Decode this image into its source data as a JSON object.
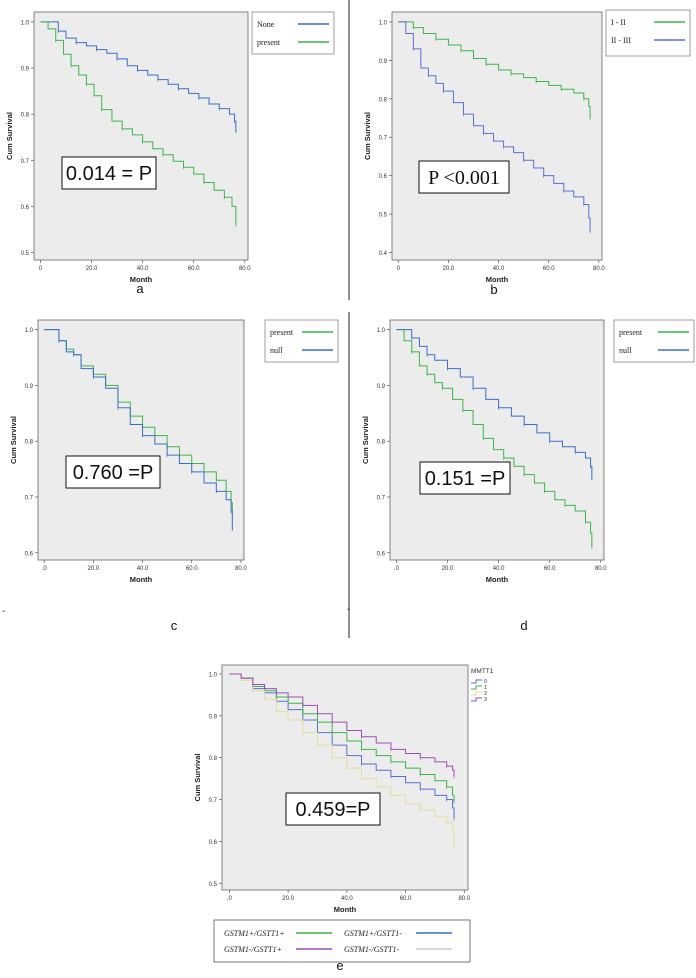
{
  "figure": {
    "divider_colors": {
      "line": "#222222"
    },
    "marker_c": "-",
    "marker_d": "-"
  },
  "chart_data": [
    {
      "panel_label": "a",
      "type": "line",
      "xlabel": "Month",
      "ylabel": "Cum Survival",
      "xlim": [
        0,
        80
      ],
      "ylim": [
        0.5,
        1.0
      ],
      "xticks": [
        0,
        20,
        40,
        60,
        80
      ],
      "xtick_labels": [
        "0",
        "20.0",
        "40.0",
        "60.0",
        "80.0"
      ],
      "yticks": [
        0.5,
        0.6,
        0.7,
        0.8,
        0.9,
        1.0
      ],
      "ytick_labels": [
        "0.5",
        "0.6",
        "0.7",
        "0.8",
        "0.9",
        "1.0"
      ],
      "annotation": "0.014 = P",
      "annotation_font": "sans",
      "legend_position": "top-right",
      "series": [
        {
          "name": "None",
          "color": "#3a6fc9",
          "x": [
            0,
            3,
            7,
            10,
            14,
            18,
            22,
            26,
            30,
            34,
            38,
            42,
            46,
            50,
            54,
            58,
            62,
            66,
            70,
            74,
            76,
            76.5
          ],
          "y": [
            1.0,
            1.0,
            0.98,
            0.965,
            0.955,
            0.948,
            0.94,
            0.932,
            0.92,
            0.905,
            0.895,
            0.885,
            0.875,
            0.865,
            0.855,
            0.845,
            0.835,
            0.822,
            0.812,
            0.8,
            0.785,
            0.76
          ]
        },
        {
          "name": "present",
          "color": "#3cb54a",
          "x": [
            0,
            3,
            6,
            9,
            12,
            15,
            18,
            21,
            24,
            28,
            32,
            36,
            40,
            44,
            48,
            52,
            56,
            60,
            64,
            68,
            72,
            75,
            76.5
          ],
          "y": [
            1.0,
            0.985,
            0.96,
            0.93,
            0.905,
            0.885,
            0.865,
            0.84,
            0.81,
            0.785,
            0.768,
            0.755,
            0.74,
            0.725,
            0.712,
            0.698,
            0.685,
            0.67,
            0.652,
            0.635,
            0.62,
            0.6,
            0.56
          ]
        }
      ]
    },
    {
      "panel_label": "b",
      "type": "line",
      "xlabel": "Month",
      "ylabel": "Cum Survival",
      "xlim": [
        0,
        80
      ],
      "ylim": [
        0.4,
        1.0
      ],
      "xticks": [
        0,
        20,
        40,
        60,
        80
      ],
      "xtick_labels": [
        "0",
        "20.0",
        "40.0",
        "60.0",
        "80.0"
      ],
      "yticks": [
        0.4,
        0.5,
        0.6,
        0.7,
        0.8,
        0.9,
        1.0
      ],
      "ytick_labels": [
        "0.4",
        "0.5",
        "0.6",
        "0.7",
        "0.8",
        "0.9",
        "1.0"
      ],
      "annotation": "P <0.001",
      "annotation_font": "serif",
      "legend_position": "top-right",
      "series": [
        {
          "name": "I - II",
          "color": "#3cb54a",
          "x": [
            0,
            3,
            6,
            10,
            15,
            20,
            25,
            30,
            35,
            40,
            45,
            50,
            55,
            60,
            65,
            70,
            74,
            76,
            76.5
          ],
          "y": [
            1.0,
            1.0,
            0.985,
            0.97,
            0.955,
            0.94,
            0.925,
            0.905,
            0.89,
            0.875,
            0.865,
            0.855,
            0.845,
            0.835,
            0.825,
            0.815,
            0.8,
            0.78,
            0.75
          ]
        },
        {
          "name": "II - III",
          "color": "#5b6fd6",
          "x": [
            0,
            3,
            6,
            9,
            12,
            15,
            18,
            22,
            26,
            30,
            34,
            38,
            42,
            46,
            50,
            54,
            58,
            62,
            66,
            70,
            74,
            76,
            76.5
          ],
          "y": [
            1.0,
            0.97,
            0.93,
            0.88,
            0.86,
            0.84,
            0.82,
            0.79,
            0.76,
            0.73,
            0.71,
            0.69,
            0.675,
            0.66,
            0.64,
            0.62,
            0.6,
            0.58,
            0.56,
            0.545,
            0.525,
            0.49,
            0.455
          ]
        }
      ]
    },
    {
      "panel_label": "c",
      "type": "line",
      "xlabel": "Month",
      "ylabel": "Cum Survival",
      "xlim": [
        0,
        80
      ],
      "ylim": [
        0.6,
        1.0
      ],
      "xticks": [
        0,
        20,
        40,
        60,
        80
      ],
      "xtick_labels": [
        ".0",
        "20.0",
        "40.0",
        "60.0",
        "80.0"
      ],
      "yticks": [
        0.6,
        0.7,
        0.8,
        0.9,
        1.0
      ],
      "ytick_labels": [
        "0.6",
        "0.7",
        "0.8",
        "0.9",
        "1.0"
      ],
      "annotation": "0.760 =P",
      "annotation_font": "sans",
      "legend_position": "top-right",
      "series": [
        {
          "name": "present",
          "color": "#3cb54a",
          "x": [
            0,
            3,
            6,
            9,
            12,
            15,
            20,
            25,
            30,
            35,
            40,
            45,
            50,
            55,
            60,
            65,
            70,
            74,
            76,
            76.5
          ],
          "y": [
            1.0,
            1.0,
            0.98,
            0.965,
            0.955,
            0.935,
            0.92,
            0.9,
            0.87,
            0.845,
            0.825,
            0.81,
            0.79,
            0.775,
            0.76,
            0.745,
            0.73,
            0.71,
            0.69,
            0.665
          ]
        },
        {
          "name": "null",
          "color": "#3a6fc9",
          "x": [
            0,
            3,
            6,
            9,
            12,
            15,
            20,
            25,
            30,
            35,
            40,
            45,
            50,
            55,
            60,
            65,
            70,
            74,
            76,
            76.5
          ],
          "y": [
            1.0,
            1.0,
            0.98,
            0.96,
            0.955,
            0.93,
            0.915,
            0.895,
            0.86,
            0.83,
            0.81,
            0.795,
            0.775,
            0.76,
            0.745,
            0.725,
            0.71,
            0.695,
            0.675,
            0.64
          ]
        }
      ]
    },
    {
      "panel_label": "d",
      "type": "line",
      "xlabel": "Month",
      "ylabel": "Cum Survival",
      "xlim": [
        0,
        80
      ],
      "ylim": [
        0.6,
        1.0
      ],
      "xticks": [
        0,
        20,
        40,
        60,
        80
      ],
      "xtick_labels": [
        ".0",
        "20.0",
        "40.0",
        "60.0",
        "80.0"
      ],
      "yticks": [
        0.6,
        0.7,
        0.8,
        0.9,
        1.0
      ],
      "ytick_labels": [
        "0.6",
        "0.7",
        "0.8",
        "0.9",
        "1.0"
      ],
      "annotation": "0.151 =P",
      "annotation_font": "sans",
      "legend_position": "top-right",
      "series": [
        {
          "name": "present",
          "color": "#3cb54a",
          "x": [
            0,
            3,
            6,
            9,
            12,
            15,
            18,
            22,
            26,
            30,
            34,
            38,
            42,
            46,
            50,
            54,
            58,
            62,
            66,
            70,
            74,
            76,
            76.5
          ],
          "y": [
            1.0,
            0.98,
            0.96,
            0.935,
            0.92,
            0.905,
            0.895,
            0.875,
            0.855,
            0.83,
            0.805,
            0.785,
            0.77,
            0.755,
            0.74,
            0.725,
            0.71,
            0.695,
            0.685,
            0.675,
            0.655,
            0.635,
            0.61
          ]
        },
        {
          "name": "null",
          "color": "#3a6fc9",
          "x": [
            0,
            3,
            6,
            9,
            12,
            15,
            20,
            25,
            30,
            35,
            40,
            45,
            50,
            55,
            60,
            65,
            70,
            74,
            76,
            76.5
          ],
          "y": [
            1.0,
            1.0,
            0.985,
            0.97,
            0.955,
            0.945,
            0.93,
            0.915,
            0.895,
            0.875,
            0.86,
            0.845,
            0.83,
            0.815,
            0.8,
            0.79,
            0.78,
            0.77,
            0.755,
            0.73
          ]
        }
      ]
    },
    {
      "panel_label": "e",
      "type": "line",
      "xlabel": "Month",
      "ylabel": "Cum Survival",
      "xlim": [
        0,
        80
      ],
      "ylim": [
        0.5,
        1.0
      ],
      "xticks": [
        0,
        20,
        40,
        60,
        80
      ],
      "xtick_labels": [
        ".0",
        "20.0",
        "40.0",
        "60.0",
        "80.0"
      ],
      "yticks": [
        0.5,
        0.6,
        0.7,
        0.8,
        0.9,
        1.0
      ],
      "ytick_labels": [
        "0.5",
        "0.6",
        "0.7",
        "0.8",
        "0.9",
        "1.0"
      ],
      "annotation": "0.459=P",
      "annotation_font": "sans",
      "legend_title": "MMTT1",
      "legend_position": "top-right",
      "series": [
        {
          "name": "0",
          "color": "#5b6fd6",
          "x": [
            0,
            4,
            8,
            12,
            16,
            20,
            25,
            30,
            35,
            40,
            45,
            50,
            55,
            60,
            65,
            70,
            74,
            76,
            76.5
          ],
          "y": [
            1.0,
            0.99,
            0.965,
            0.955,
            0.935,
            0.915,
            0.89,
            0.86,
            0.83,
            0.805,
            0.785,
            0.77,
            0.755,
            0.74,
            0.725,
            0.71,
            0.7,
            0.68,
            0.655
          ]
        },
        {
          "name": "1",
          "color": "#3cb54a",
          "x": [
            0,
            4,
            8,
            12,
            16,
            20,
            25,
            30,
            35,
            40,
            45,
            50,
            55,
            60,
            65,
            70,
            74,
            76,
            76.5
          ],
          "y": [
            1.0,
            0.99,
            0.97,
            0.96,
            0.945,
            0.93,
            0.905,
            0.885,
            0.86,
            0.84,
            0.82,
            0.805,
            0.79,
            0.775,
            0.76,
            0.745,
            0.73,
            0.71,
            0.695
          ]
        },
        {
          "name": "2",
          "color": "#e3dd9a",
          "x": [
            0,
            4,
            8,
            12,
            16,
            20,
            25,
            30,
            35,
            40,
            45,
            50,
            55,
            60,
            65,
            70,
            74,
            76,
            76.5
          ],
          "y": [
            1.0,
            0.985,
            0.96,
            0.94,
            0.91,
            0.89,
            0.86,
            0.83,
            0.8,
            0.775,
            0.75,
            0.73,
            0.71,
            0.69,
            0.675,
            0.66,
            0.645,
            0.625,
            0.59
          ]
        },
        {
          "name": "3",
          "color": "#9b4fb0",
          "x": [
            0,
            4,
            8,
            12,
            16,
            20,
            25,
            30,
            35,
            40,
            45,
            50,
            55,
            60,
            65,
            70,
            74,
            76,
            76.5
          ],
          "y": [
            1.0,
            0.99,
            0.975,
            0.965,
            0.955,
            0.945,
            0.925,
            0.905,
            0.885,
            0.865,
            0.85,
            0.835,
            0.82,
            0.81,
            0.8,
            0.79,
            0.78,
            0.77,
            0.755
          ]
        }
      ],
      "bottom_legend": [
        {
          "label": "GSTM1+/GSTT1+",
          "color": "#3cb54a"
        },
        {
          "label": "GSTM1+/GSTT1-",
          "color": "#3a6fc9"
        },
        {
          "label": "GSTM1-/GSTT1+",
          "color": "#9b4fb0"
        },
        {
          "label": "GSTM1-/GSTT1-",
          "color": "#c8c8c8"
        }
      ]
    }
  ]
}
